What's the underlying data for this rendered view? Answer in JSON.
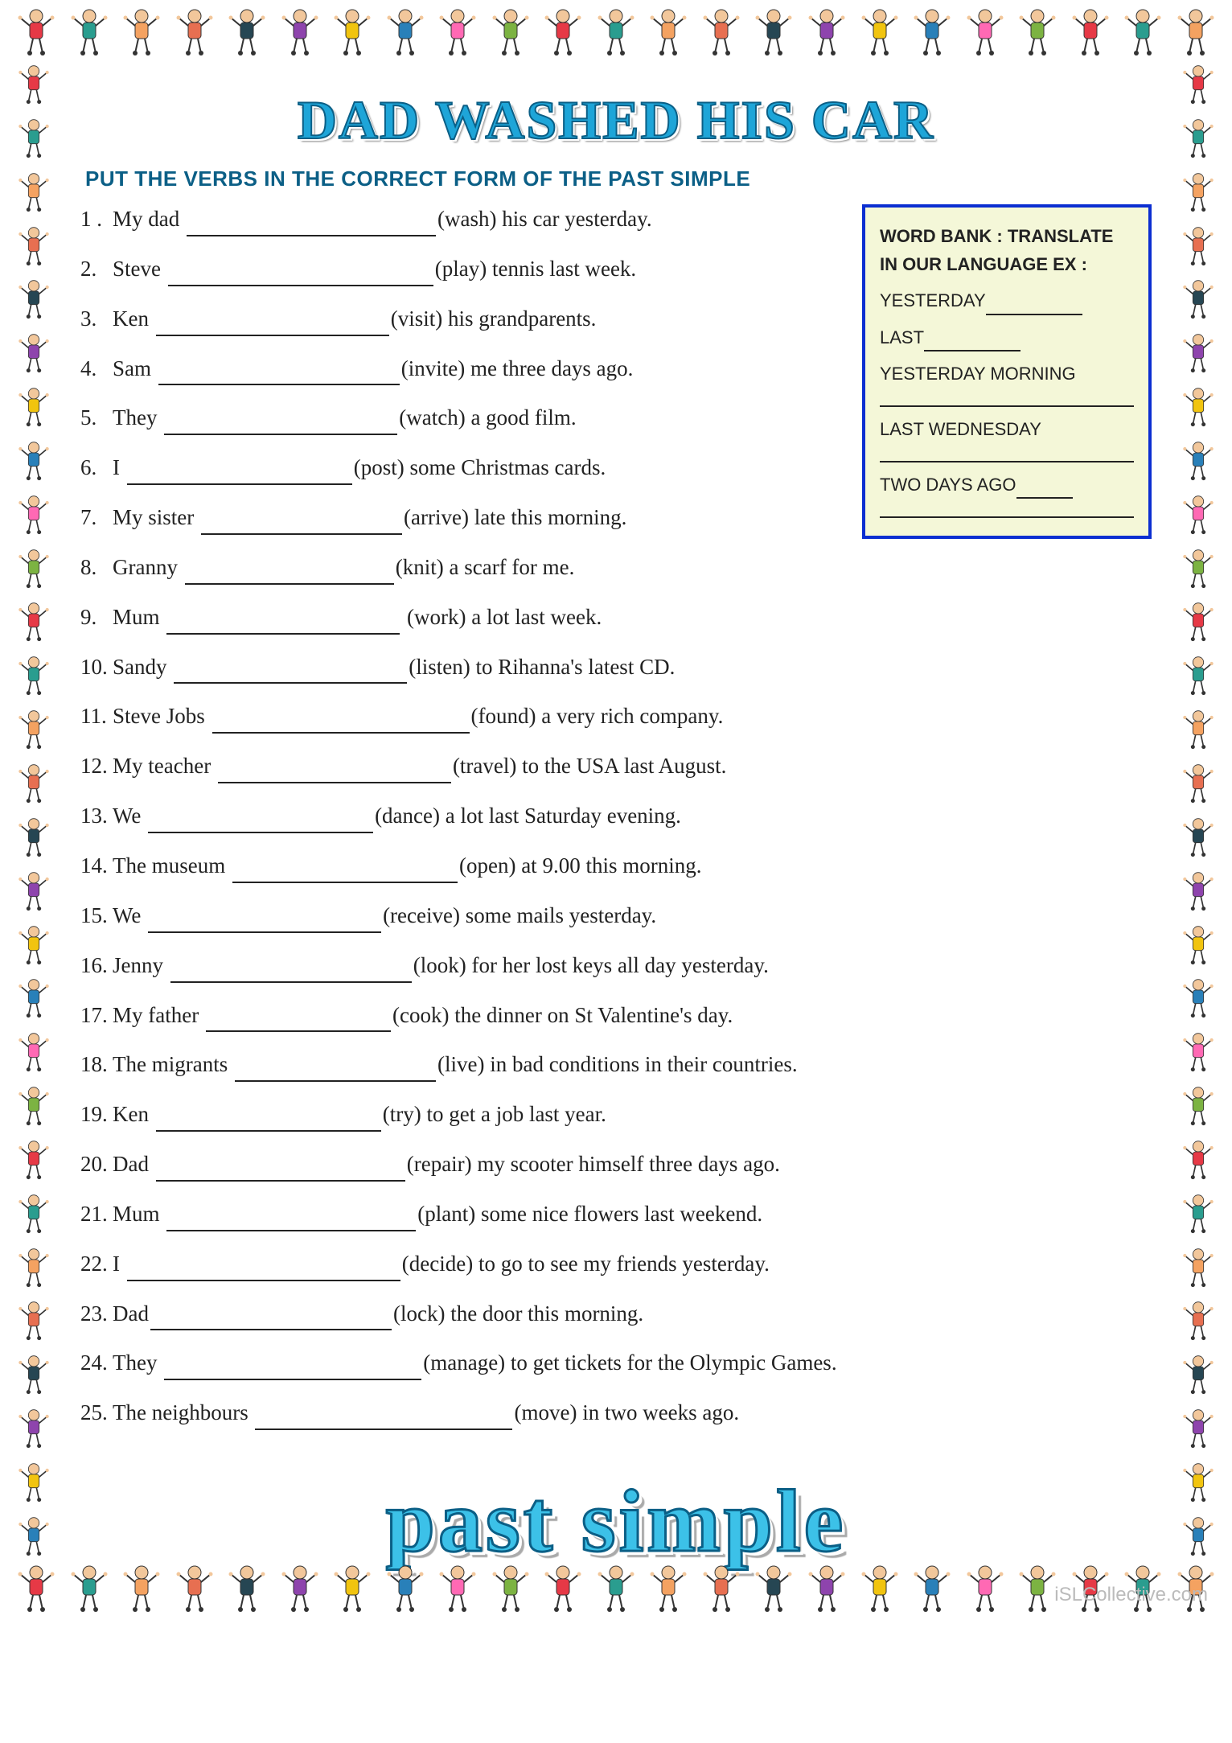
{
  "title": "DAD WASHED HIS CAR",
  "instruction": "PUT THE VERBS IN THE CORRECT FORM OF THE PAST SIMPLE",
  "footer": "past   simple",
  "watermark": "iSLCollective.com",
  "colors": {
    "title_fill": "#1ea5d8",
    "title_stroke": "#0b5f86",
    "instruction": "#0b5f86",
    "wordbank_border": "#0b2ed1",
    "wordbank_bg": "#f4f7d8",
    "footer_fill": "#3cc1e8"
  },
  "border": {
    "kid_colors": [
      "#e63946",
      "#2a9d8f",
      "#f4a261",
      "#e76f51",
      "#264653",
      "#8e44ad",
      "#f1c40f",
      "#2980b9",
      "#ff69b4",
      "#7cb342"
    ],
    "horiz_count": 23,
    "vert_count": 28
  },
  "wordbank": {
    "heading": "WORD BANK : TRANSLATE IN OUR LANGUAGE EX :",
    "items": [
      {
        "label": "YESTERDAY",
        "inline": true
      },
      {
        "label": "LAST",
        "inline": true
      },
      {
        "label": "YESTERDAY MORNING",
        "inline": false
      },
      {
        "label": "LAST WEDNESDAY",
        "inline": false
      },
      {
        "label": "TWO DAYS AGO",
        "inline_short": true
      }
    ]
  },
  "questions": [
    {
      "n": "1 .",
      "pre": "My dad ",
      "bw": 310,
      "verb": "(wash)",
      "post": " his car yesterday."
    },
    {
      "n": "2.",
      "pre": "Steve ",
      "bw": 330,
      "verb": "(play)",
      "post": " tennis last week."
    },
    {
      "n": "3.",
      "pre": "Ken ",
      "bw": 290,
      "verb": "(visit)",
      "post": " his grandparents."
    },
    {
      "n": "4.",
      "pre": "Sam ",
      "bw": 300,
      "verb": "(invite)",
      "post": " me three days ago."
    },
    {
      "n": "5.",
      "pre": "They ",
      "bw": 290,
      "verb": "(watch)",
      "post": " a good film."
    },
    {
      "n": "6.",
      "pre": "I ",
      "bw": 280,
      "verb": "(post)",
      "post": " some Christmas cards."
    },
    {
      "n": "7.",
      "pre": "My sister ",
      "bw": 250,
      "verb": "(arrive)",
      "post": " late this morning."
    },
    {
      "n": "8.",
      "pre": "Granny ",
      "bw": 260,
      "verb": "(knit)",
      "post": " a scarf for me."
    },
    {
      "n": "9.",
      "pre": "Mum ",
      "bw": 290,
      "verb": " (work)",
      "post": " a lot last week."
    },
    {
      "n": "10.",
      "pre": "Sandy ",
      "bw": 290,
      "verb": "(listen)",
      "post": " to Rihanna's latest CD."
    },
    {
      "n": "11.",
      "pre": "Steve Jobs ",
      "bw": 320,
      "verb": "(found)",
      "post": " a very rich company."
    },
    {
      "n": "12.",
      "pre": "My teacher ",
      "bw": 290,
      "verb": "(travel)",
      "post": " to the USA last August."
    },
    {
      "n": "13.",
      "pre": "We ",
      "bw": 280,
      "verb": "(dance)",
      "post": " a lot last Saturday evening."
    },
    {
      "n": "14.",
      "pre": "The museum ",
      "bw": 280,
      "verb": "(open)",
      "post": " at 9.00 this morning."
    },
    {
      "n": "15.",
      "pre": "We ",
      "bw": 290,
      "verb": "(receive)",
      "post": " some mails yesterday."
    },
    {
      "n": "16.",
      "pre": "Jenny ",
      "bw": 300,
      "verb": "(look)",
      "post": " for her lost keys all day yesterday."
    },
    {
      "n": "17.",
      "pre": "My father ",
      "bw": 230,
      "verb": "(cook)",
      "post": " the dinner on St Valentine's day."
    },
    {
      "n": "18.",
      "pre": "The migrants ",
      "bw": 250,
      "verb": "(live)",
      "post": " in bad conditions in their countries."
    },
    {
      "n": "19.",
      "pre": "Ken ",
      "bw": 280,
      "verb": "(try)",
      "post": " to get a job last year."
    },
    {
      "n": "20.",
      "pre": "Dad ",
      "bw": 310,
      "verb": "(repair)",
      "post": " my scooter himself three days ago."
    },
    {
      "n": "21.",
      "pre": "Mum ",
      "bw": 310,
      "verb": "(plant)",
      "post": " some nice flowers last weekend."
    },
    {
      "n": "22.",
      "pre": "I ",
      "bw": 340,
      "verb": "(decide)",
      "post": " to  go to see my friends yesterday."
    },
    {
      "n": "23.",
      "pre": "Dad",
      "bw": 300,
      "verb": "(lock)",
      "post": " the door this morning."
    },
    {
      "n": "24.",
      "pre": "They ",
      "bw": 320,
      "verb": "(manage)",
      "post": " to get tickets for the Olympic Games."
    },
    {
      "n": "25.",
      "pre": "The neighbours ",
      "bw": 320,
      "verb": "(move)",
      "post": " in two weeks ago."
    }
  ]
}
